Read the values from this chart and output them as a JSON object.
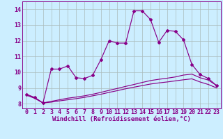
{
  "xlabel": "Windchill (Refroidissement éolien,°C)",
  "background_color": "#cceeff",
  "grid_color": "#aabbbb",
  "line_color": "#880088",
  "x_ticks": [
    0,
    1,
    2,
    3,
    4,
    5,
    6,
    7,
    8,
    9,
    10,
    11,
    12,
    13,
    14,
    15,
    16,
    17,
    18,
    19,
    20,
    21,
    22,
    23
  ],
  "y_ticks": [
    8,
    9,
    10,
    11,
    12,
    13,
    14
  ],
  "ylim": [
    7.7,
    14.5
  ],
  "xlim": [
    -0.5,
    23.5
  ],
  "line1_x": [
    0,
    1,
    2,
    3,
    4,
    5,
    6,
    7,
    8,
    9,
    10,
    11,
    12,
    13,
    14,
    15,
    16,
    17,
    18,
    19,
    20,
    21,
    22,
    23
  ],
  "line1_y": [
    8.6,
    8.4,
    8.05,
    10.2,
    10.2,
    10.4,
    9.65,
    9.6,
    9.8,
    10.8,
    12.0,
    11.85,
    11.85,
    13.9,
    13.9,
    13.35,
    11.9,
    12.65,
    12.6,
    12.05,
    10.5,
    9.85,
    9.6,
    9.15
  ],
  "line2_x": [
    0,
    1,
    2,
    3,
    4,
    5,
    6,
    7,
    8,
    9,
    10,
    11,
    12,
    13,
    14,
    15,
    16,
    17,
    18,
    19,
    20,
    21,
    22,
    23
  ],
  "line2_y": [
    8.55,
    8.35,
    8.05,
    8.15,
    8.25,
    8.35,
    8.42,
    8.5,
    8.6,
    8.72,
    8.85,
    8.97,
    9.1,
    9.22,
    9.35,
    9.47,
    9.55,
    9.62,
    9.7,
    9.82,
    9.88,
    9.65,
    9.5,
    9.15
  ],
  "line3_x": [
    0,
    1,
    2,
    3,
    4,
    5,
    6,
    7,
    8,
    9,
    10,
    11,
    12,
    13,
    14,
    15,
    16,
    17,
    18,
    19,
    20,
    21,
    22,
    23
  ],
  "line3_y": [
    8.55,
    8.35,
    8.05,
    8.1,
    8.18,
    8.25,
    8.32,
    8.4,
    8.5,
    8.6,
    8.72,
    8.83,
    8.95,
    9.05,
    9.15,
    9.25,
    9.32,
    9.38,
    9.45,
    9.52,
    9.58,
    9.38,
    9.22,
    9.0
  ],
  "xlabel_fontsize": 6.5,
  "tick_fontsize": 6.0
}
